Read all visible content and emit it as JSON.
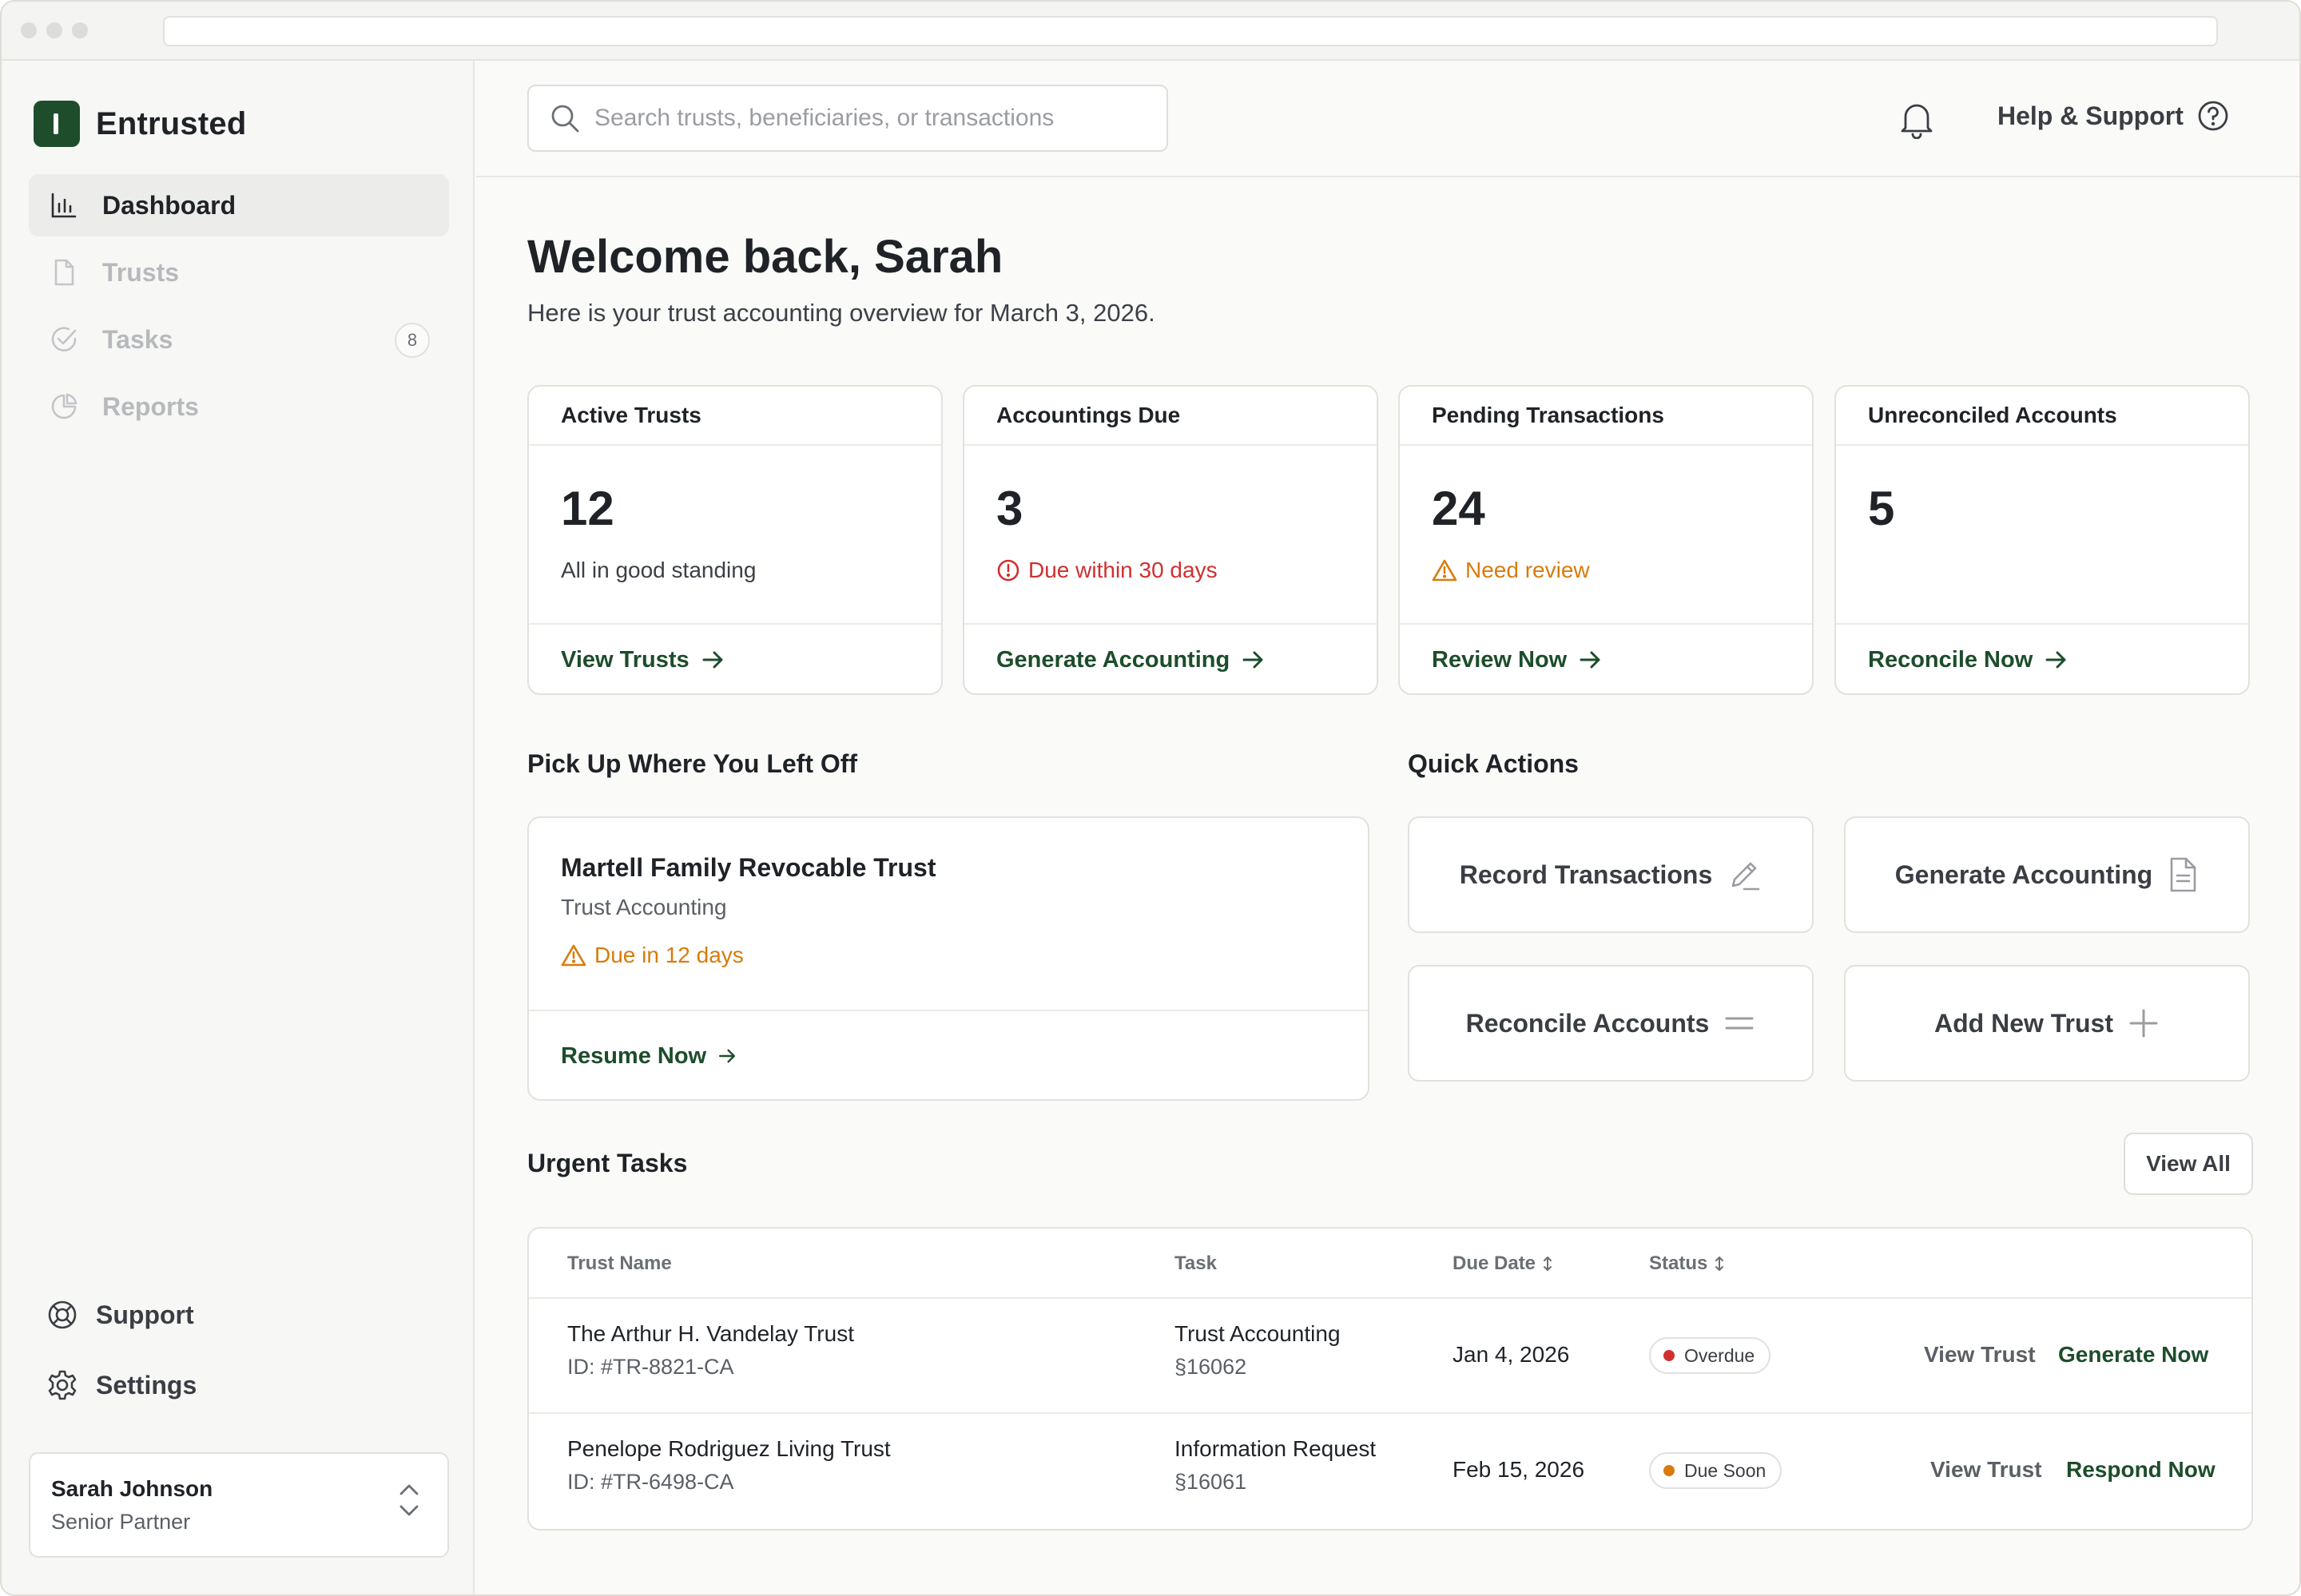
{
  "app": {
    "brand_name": "Entrusted",
    "accent_color": "#1d4d2b"
  },
  "sidebar": {
    "nav": [
      {
        "label": "Dashboard",
        "icon": "bar-chart-icon",
        "active": true
      },
      {
        "label": "Trusts",
        "icon": "document-icon",
        "active": false
      },
      {
        "label": "Tasks",
        "icon": "check-circle-icon",
        "active": false,
        "count": "8"
      },
      {
        "label": "Reports",
        "icon": "pie-chart-icon",
        "active": false
      }
    ],
    "support_label": "Support",
    "settings_label": "Settings",
    "user": {
      "name": "Sarah Johnson",
      "role": "Senior Partner"
    }
  },
  "header": {
    "search_placeholder": "Search trusts, beneficiaries, or transactions",
    "help_label": "Help & Support"
  },
  "main": {
    "welcome": "Welcome back, Sarah",
    "subtitle": "Here is your trust accounting overview for March 3, 2026.",
    "stats": [
      {
        "title": "Active Trusts",
        "value": "12",
        "note": "All in good standing",
        "note_tone": "neutral",
        "link": "View Trusts"
      },
      {
        "title": "Accountings Due",
        "value": "3",
        "note": "Due within 30 days",
        "note_tone": "red",
        "link": "Generate Accounting"
      },
      {
        "title": "Pending Transactions",
        "value": "24",
        "note": "Need review",
        "note_tone": "amber",
        "link": "Review Now"
      },
      {
        "title": "Unreconciled Accounts",
        "value": "5",
        "note": "",
        "note_tone": "none",
        "link": "Reconcile Now"
      }
    ],
    "pickup": {
      "section_title": "Pick Up Where You Left Off",
      "trust_name": "Martell Family Revocable Trust",
      "task": "Trust Accounting",
      "due": "Due in 12 days",
      "link": "Resume Now"
    },
    "quick_actions": {
      "section_title": "Quick Actions",
      "items": [
        {
          "label": "Record Transactions",
          "icon": "pencil-icon"
        },
        {
          "label": "Generate Accounting",
          "icon": "file-icon"
        },
        {
          "label": "Reconcile Accounts",
          "icon": "equals-icon"
        },
        {
          "label": "Add New Trust",
          "icon": "plus-icon"
        }
      ]
    },
    "urgent": {
      "section_title": "Urgent Tasks",
      "view_all": "View All",
      "columns": [
        "Trust Name",
        "Task",
        "Due Date",
        "Status"
      ],
      "rows": [
        {
          "trust": "The Arthur H. Vandelay Trust",
          "id": "ID: #TR-8821-CA",
          "task": "Trust Accounting",
          "code": "§16062",
          "due": "Jan 4, 2026",
          "status": "Overdue",
          "status_color": "#d12f2f",
          "secondary": "View Trust",
          "primary": "Generate Now"
        },
        {
          "trust": "Penelope Rodriguez Living Trust",
          "id": "ID: #TR-6498-CA",
          "task": "Information Request",
          "code": "§16061",
          "due": "Feb 15, 2026",
          "status": "Due Soon",
          "status_color": "#d97b0b",
          "secondary": "View Trust",
          "primary": "Respond Now"
        }
      ]
    }
  }
}
